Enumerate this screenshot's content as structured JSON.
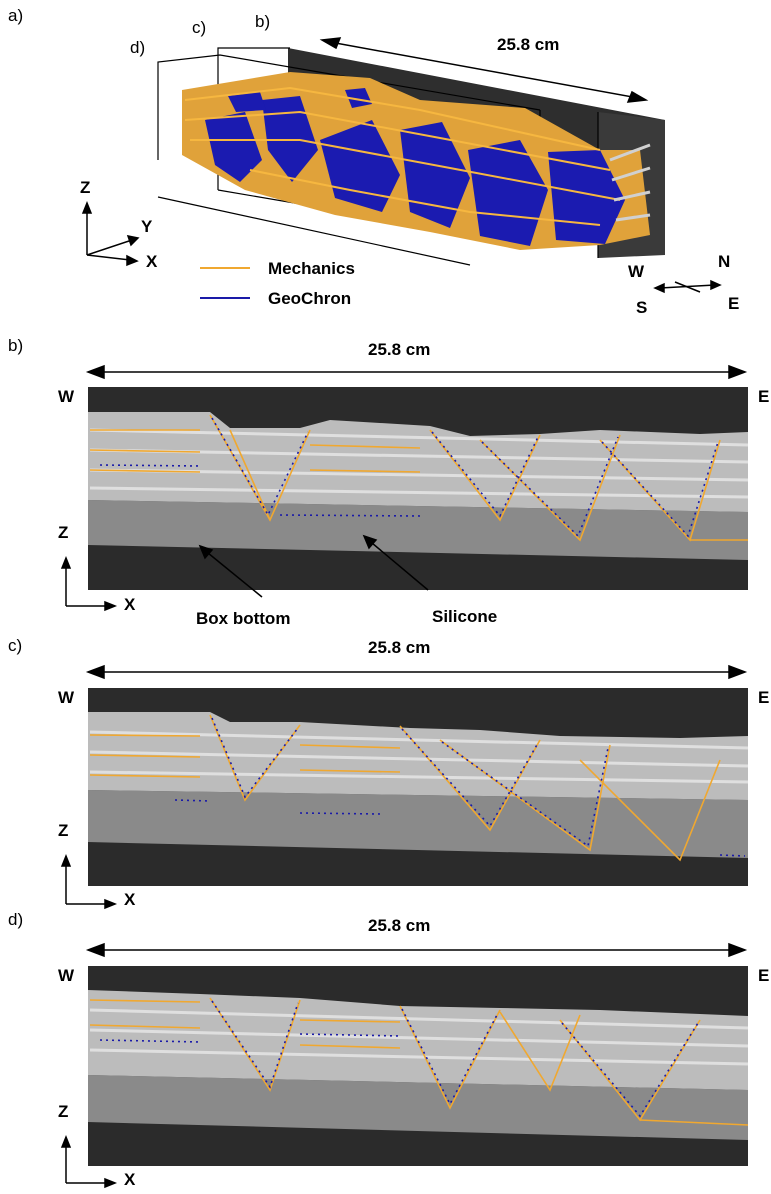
{
  "figure": {
    "panel_a": {
      "letter": "a)",
      "section_markers": {
        "d": "d)",
        "c": "c)",
        "b": "b)"
      },
      "length_label": "25.8 cm",
      "axes": {
        "z": "Z",
        "y": "Y",
        "x": "X"
      },
      "legend": [
        {
          "label": "Mechanics",
          "color": "#f0a830"
        },
        {
          "label": "GeoChron",
          "color": "#1a1aa8"
        }
      ],
      "compass": {
        "w": "W",
        "n": "N",
        "s": "S",
        "e": "E"
      }
    },
    "panel_b": {
      "letter": "b)",
      "length_label": "25.8 cm",
      "west": "W",
      "east": "E",
      "axis_z": "Z",
      "axis_x": "X",
      "annotations": {
        "box_bottom": "Box bottom",
        "silicone": "Silicone"
      }
    },
    "panel_c": {
      "letter": "c)",
      "length_label": "25.8 cm",
      "west": "W",
      "east": "E",
      "axis_z": "Z",
      "axis_x": "X"
    },
    "panel_d": {
      "letter": "d)",
      "length_label": "25.8 cm",
      "west": "W",
      "east": "E",
      "axis_z": "Z",
      "axis_x": "X"
    },
    "colors": {
      "mechanics": "#f0a830",
      "geochron": "#1a1aa8",
      "box_dark": "#2b2b2b",
      "silicone": "#8a8a8a"
    }
  }
}
